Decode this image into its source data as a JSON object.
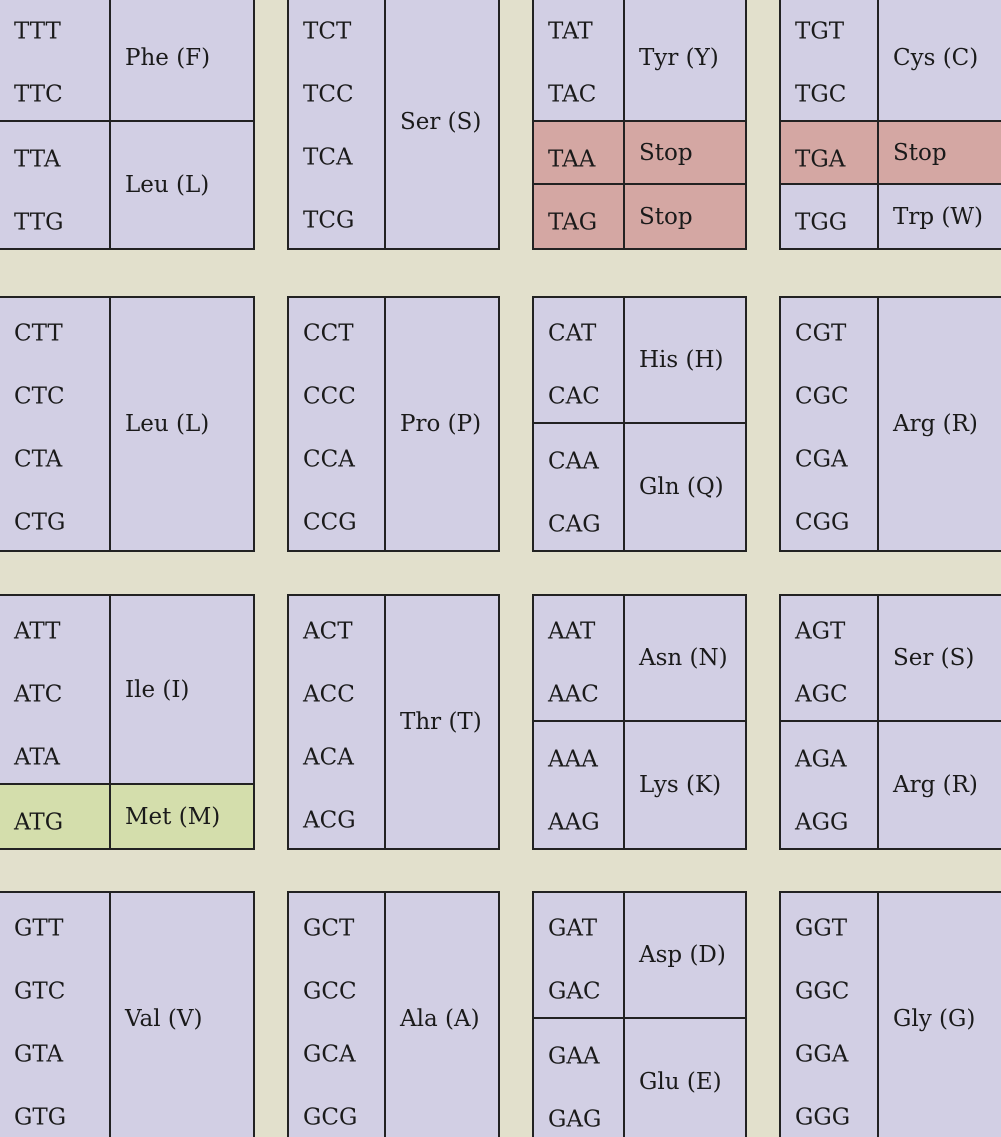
{
  "colors": {
    "background": "#e2e0cc",
    "cell": "#d2cfe4",
    "stop": "#d4a7a3",
    "start": "#d4deac",
    "border": "#222222"
  },
  "rows": [
    {
      "blocks": [
        {
          "groups": [
            {
              "codons": [
                "TTT",
                "TTC"
              ],
              "aa": "Phe (F)",
              "kind": "normal"
            },
            {
              "codons": [
                "TTA",
                "TTG"
              ],
              "aa": "Leu (L)",
              "kind": "normal"
            }
          ]
        },
        {
          "groups": [
            {
              "codons": [
                "TCT",
                "TCC",
                "TCA",
                "TCG"
              ],
              "aa": "Ser (S)",
              "kind": "normal"
            }
          ]
        },
        {
          "groups": [
            {
              "codons": [
                "TAT",
                "TAC"
              ],
              "aa": "Tyr (Y)",
              "kind": "normal"
            },
            {
              "codons": [
                "TAA"
              ],
              "aa": "Stop",
              "kind": "stop"
            },
            {
              "codons": [
                "TAG"
              ],
              "aa": "Stop",
              "kind": "stop"
            }
          ]
        },
        {
          "groups": [
            {
              "codons": [
                "TGT",
                "TGC"
              ],
              "aa": "Cys (C)",
              "kind": "normal"
            },
            {
              "codons": [
                "TGA"
              ],
              "aa": "Stop",
              "kind": "stop"
            },
            {
              "codons": [
                "TGG"
              ],
              "aa": "Trp (W)",
              "kind": "normal"
            }
          ]
        }
      ]
    },
    {
      "blocks": [
        {
          "groups": [
            {
              "codons": [
                "CTT",
                "CTC",
                "CTA",
                "CTG"
              ],
              "aa": "Leu (L)",
              "kind": "normal"
            }
          ]
        },
        {
          "groups": [
            {
              "codons": [
                "CCT",
                "CCC",
                "CCA",
                "CCG"
              ],
              "aa": "Pro (P)",
              "kind": "normal"
            }
          ]
        },
        {
          "groups": [
            {
              "codons": [
                "CAT",
                "CAC"
              ],
              "aa": "His (H)",
              "kind": "normal"
            },
            {
              "codons": [
                "CAA",
                "CAG"
              ],
              "aa": "Gln (Q)",
              "kind": "normal"
            }
          ]
        },
        {
          "groups": [
            {
              "codons": [
                "CGT",
                "CGC",
                "CGA",
                "CGG"
              ],
              "aa": "Arg (R)",
              "kind": "normal"
            }
          ]
        }
      ]
    },
    {
      "blocks": [
        {
          "groups": [
            {
              "codons": [
                "ATT",
                "ATC",
                "ATA"
              ],
              "aa": "Ile (I)",
              "kind": "normal"
            },
            {
              "codons": [
                "ATG"
              ],
              "aa": "Met (M)",
              "kind": "start"
            }
          ]
        },
        {
          "groups": [
            {
              "codons": [
                "ACT",
                "ACC",
                "ACA",
                "ACG"
              ],
              "aa": "Thr (T)",
              "kind": "normal"
            }
          ]
        },
        {
          "groups": [
            {
              "codons": [
                "AAT",
                "AAC"
              ],
              "aa": "Asn (N)",
              "kind": "normal"
            },
            {
              "codons": [
                "AAA",
                "AAG"
              ],
              "aa": "Lys (K)",
              "kind": "normal"
            }
          ]
        },
        {
          "groups": [
            {
              "codons": [
                "AGT",
                "AGC"
              ],
              "aa": "Ser (S)",
              "kind": "normal"
            },
            {
              "codons": [
                "AGA",
                "AGG"
              ],
              "aa": "Arg (R)",
              "kind": "normal"
            }
          ]
        }
      ]
    },
    {
      "blocks": [
        {
          "groups": [
            {
              "codons": [
                "GTT",
                "GTC",
                "GTA",
                "GTG"
              ],
              "aa": "Val (V)",
              "kind": "normal"
            }
          ]
        },
        {
          "groups": [
            {
              "codons": [
                "GCT",
                "GCC",
                "GCA",
                "GCG"
              ],
              "aa": "Ala (A)",
              "kind": "normal"
            }
          ]
        },
        {
          "groups": [
            {
              "codons": [
                "GAT",
                "GAC"
              ],
              "aa": "Asp (D)",
              "kind": "normal"
            },
            {
              "codons": [
                "GAA",
                "GAG"
              ],
              "aa": "Glu (E)",
              "kind": "normal"
            }
          ]
        },
        {
          "groups": [
            {
              "codons": [
                "GGT",
                "GGC",
                "GGA",
                "GGG"
              ],
              "aa": "Gly (G)",
              "kind": "normal"
            }
          ]
        }
      ]
    }
  ]
}
